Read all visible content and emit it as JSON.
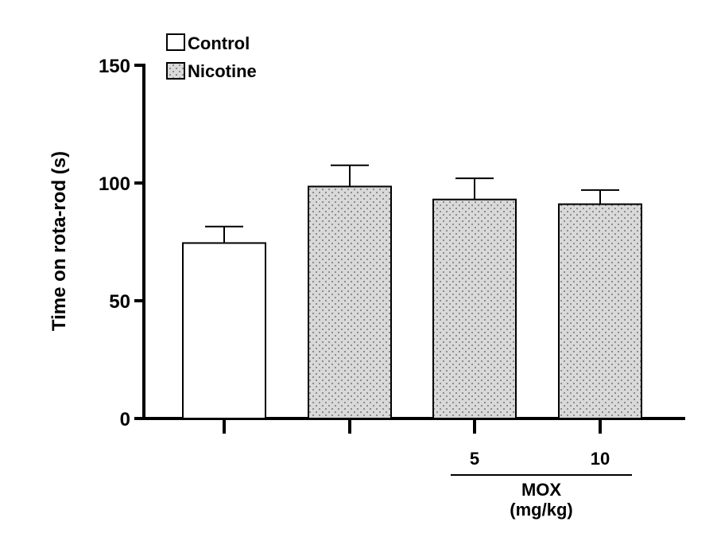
{
  "chart_data": {
    "type": "bar",
    "title": "",
    "xlabel": "",
    "ylabel": "Time on rota-rod (s)",
    "ylim": [
      0,
      150
    ],
    "yticks": [
      0,
      50,
      100,
      150
    ],
    "categories": [
      "",
      "",
      "5",
      "10"
    ],
    "values": [
      74.5,
      98.5,
      93,
      91
    ],
    "errors": [
      7,
      9,
      9,
      6
    ],
    "series_by_bar": [
      "Control",
      "Nicotine",
      "Nicotine",
      "Nicotine"
    ],
    "legend": {
      "placement": "top-left",
      "entries": [
        {
          "label": "Control",
          "fill": "#ffffff",
          "pattern": "none"
        },
        {
          "label": "Nicotine",
          "fill": "#d9d9d9",
          "pattern": "dots"
        }
      ]
    },
    "group_label": {
      "line1": "MOX",
      "line2": "(mg/kg)"
    },
    "grid": false
  },
  "colors": {
    "axis": "#000000",
    "control_fill": "#ffffff",
    "nicotine_fill": "#d9d9d9",
    "dot": "#555555"
  }
}
